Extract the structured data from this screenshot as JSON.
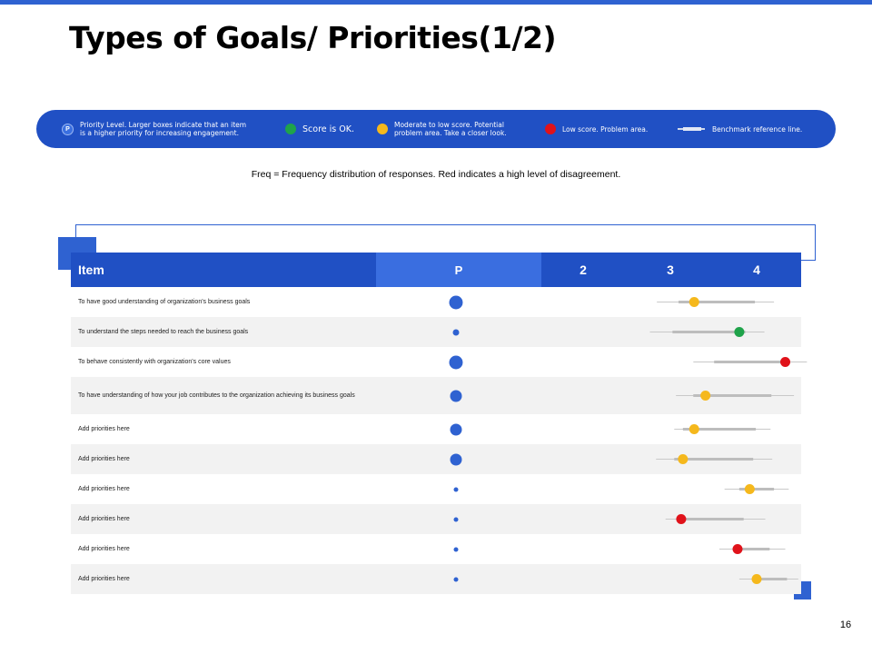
{
  "title": "Types of Goals/ Priorities(1/2)",
  "legend": {
    "p_badge": "P",
    "priority_text": "Priority Level. Larger boxes indicate that an item is a higher priority for increasing engagement.",
    "ok_text": "Score is OK.",
    "moderate_text": "Moderate to low score. Potential problem area. Take a closer look.",
    "low_text": "Low score. Problem area.",
    "benchmark_text": "Benchmark reference line."
  },
  "freq_note": "Freq = Frequency distribution of responses. Red indicates a high level of disagreement.",
  "colors": {
    "brand": "#2050c4",
    "ok": "#1fa34a",
    "moderate": "#f5b81c",
    "low": "#e0121a",
    "priority": "#2f62d1"
  },
  "table": {
    "headers": {
      "item": "Item",
      "p": "P",
      "c2": "2",
      "c3": "3",
      "c4": "4"
    },
    "scale_ticks": [
      2,
      3,
      4
    ],
    "rows": [
      {
        "label": "To have good understanding  of organization's  business goals",
        "priority": 3,
        "score": 3.28,
        "status": "moderate",
        "range": [
          2.85,
          4.2
        ],
        "box": [
          3.1,
          3.98
        ]
      },
      {
        "label": "To understand  the steps  needed  to reach the business goals",
        "priority": 1,
        "score": 3.8,
        "status": "ok",
        "range": [
          2.77,
          4.09
        ],
        "box": [
          3.03,
          3.87
        ]
      },
      {
        "label": "To behave  consistently  with organization's  core values",
        "priority": 3,
        "score": 4.33,
        "status": "low",
        "range": [
          3.27,
          4.58
        ],
        "box": [
          3.51,
          4.32
        ]
      },
      {
        "label": "To have understanding  of how your job contributes  to the organization  achieving its business goals",
        "priority": 2,
        "score": 3.41,
        "status": "moderate",
        "range": [
          3.07,
          4.43
        ],
        "box": [
          3.27,
          4.17
        ]
      },
      {
        "label": "Add priorities here",
        "priority": 2,
        "score": 3.28,
        "status": "moderate",
        "range": [
          3.05,
          4.16
        ],
        "box": [
          3.15,
          3.99
        ]
      },
      {
        "label": "Add priorities here",
        "priority": 2,
        "score": 3.15,
        "status": "moderate",
        "range": [
          2.84,
          4.18
        ],
        "box": [
          3.05,
          3.96
        ]
      },
      {
        "label": "Add priorities here",
        "priority": 0,
        "score": 3.92,
        "status": "moderate",
        "range": [
          3.63,
          4.37
        ],
        "box": [
          3.8,
          4.2
        ]
      },
      {
        "label": "Add priorities here",
        "priority": 0,
        "score": 3.13,
        "status": "low",
        "range": [
          2.95,
          4.1
        ],
        "box": [
          3.1,
          3.85
        ]
      },
      {
        "label": "Add priorities here",
        "priority": 0,
        "score": 3.78,
        "status": "low",
        "range": [
          3.57,
          4.33
        ],
        "box": [
          3.75,
          4.15
        ]
      },
      {
        "label": "Add priorities here",
        "priority": 0,
        "score": 4.0,
        "status": "moderate",
        "range": [
          3.8,
          4.48
        ],
        "box": [
          3.95,
          4.35
        ]
      }
    ]
  },
  "page_number": "16"
}
